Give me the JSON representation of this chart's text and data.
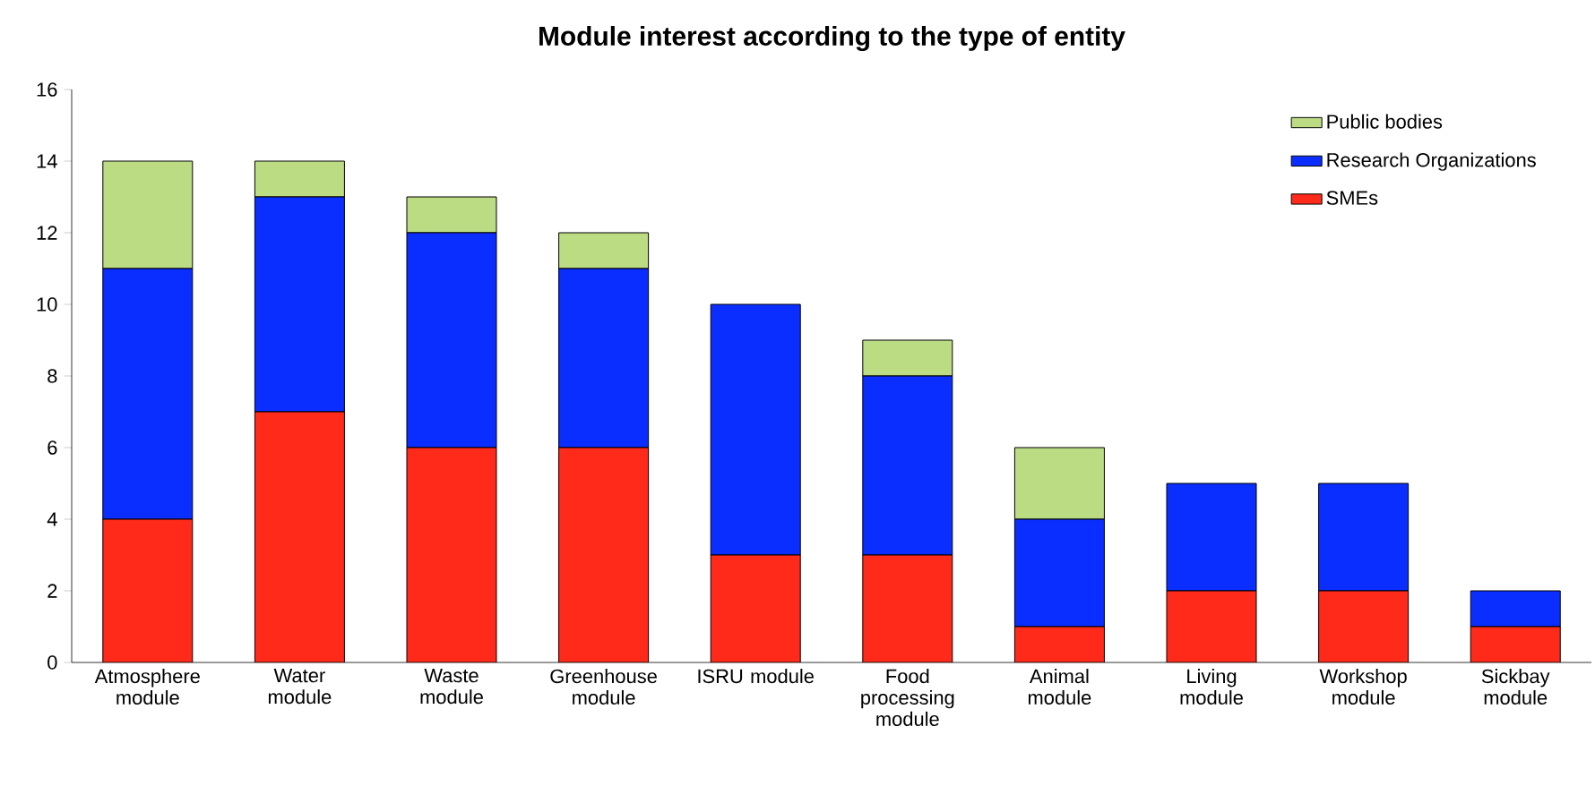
{
  "chart_data": {
    "type": "bar",
    "title": "Module interest according to the type of entity",
    "categories": [
      "Atmosphere module",
      "Water module",
      "Waste module",
      "Greenhouse module",
      "ISRU module",
      "Food processing module",
      "Animal module",
      "Living module",
      "Workshop module",
      "Sickbay module"
    ],
    "series": [
      {
        "name": "SMEs",
        "color": "#ff2a1a",
        "values": [
          4,
          7,
          6,
          6,
          3,
          3,
          1,
          2,
          2,
          1
        ]
      },
      {
        "name": "Research Organizations",
        "color": "#0a2eff",
        "values": [
          7,
          6,
          6,
          5,
          7,
          5,
          3,
          3,
          3,
          1
        ]
      },
      {
        "name": "Public bodies",
        "color": "#bcdc84",
        "values": [
          3,
          1,
          1,
          1,
          0,
          1,
          2,
          0,
          0,
          0
        ]
      }
    ],
    "stacked": true,
    "ylim": [
      0,
      16
    ],
    "yticks": [
      0,
      2,
      4,
      6,
      8,
      10,
      12,
      14,
      16
    ],
    "grid": false,
    "legend": "top right"
  }
}
